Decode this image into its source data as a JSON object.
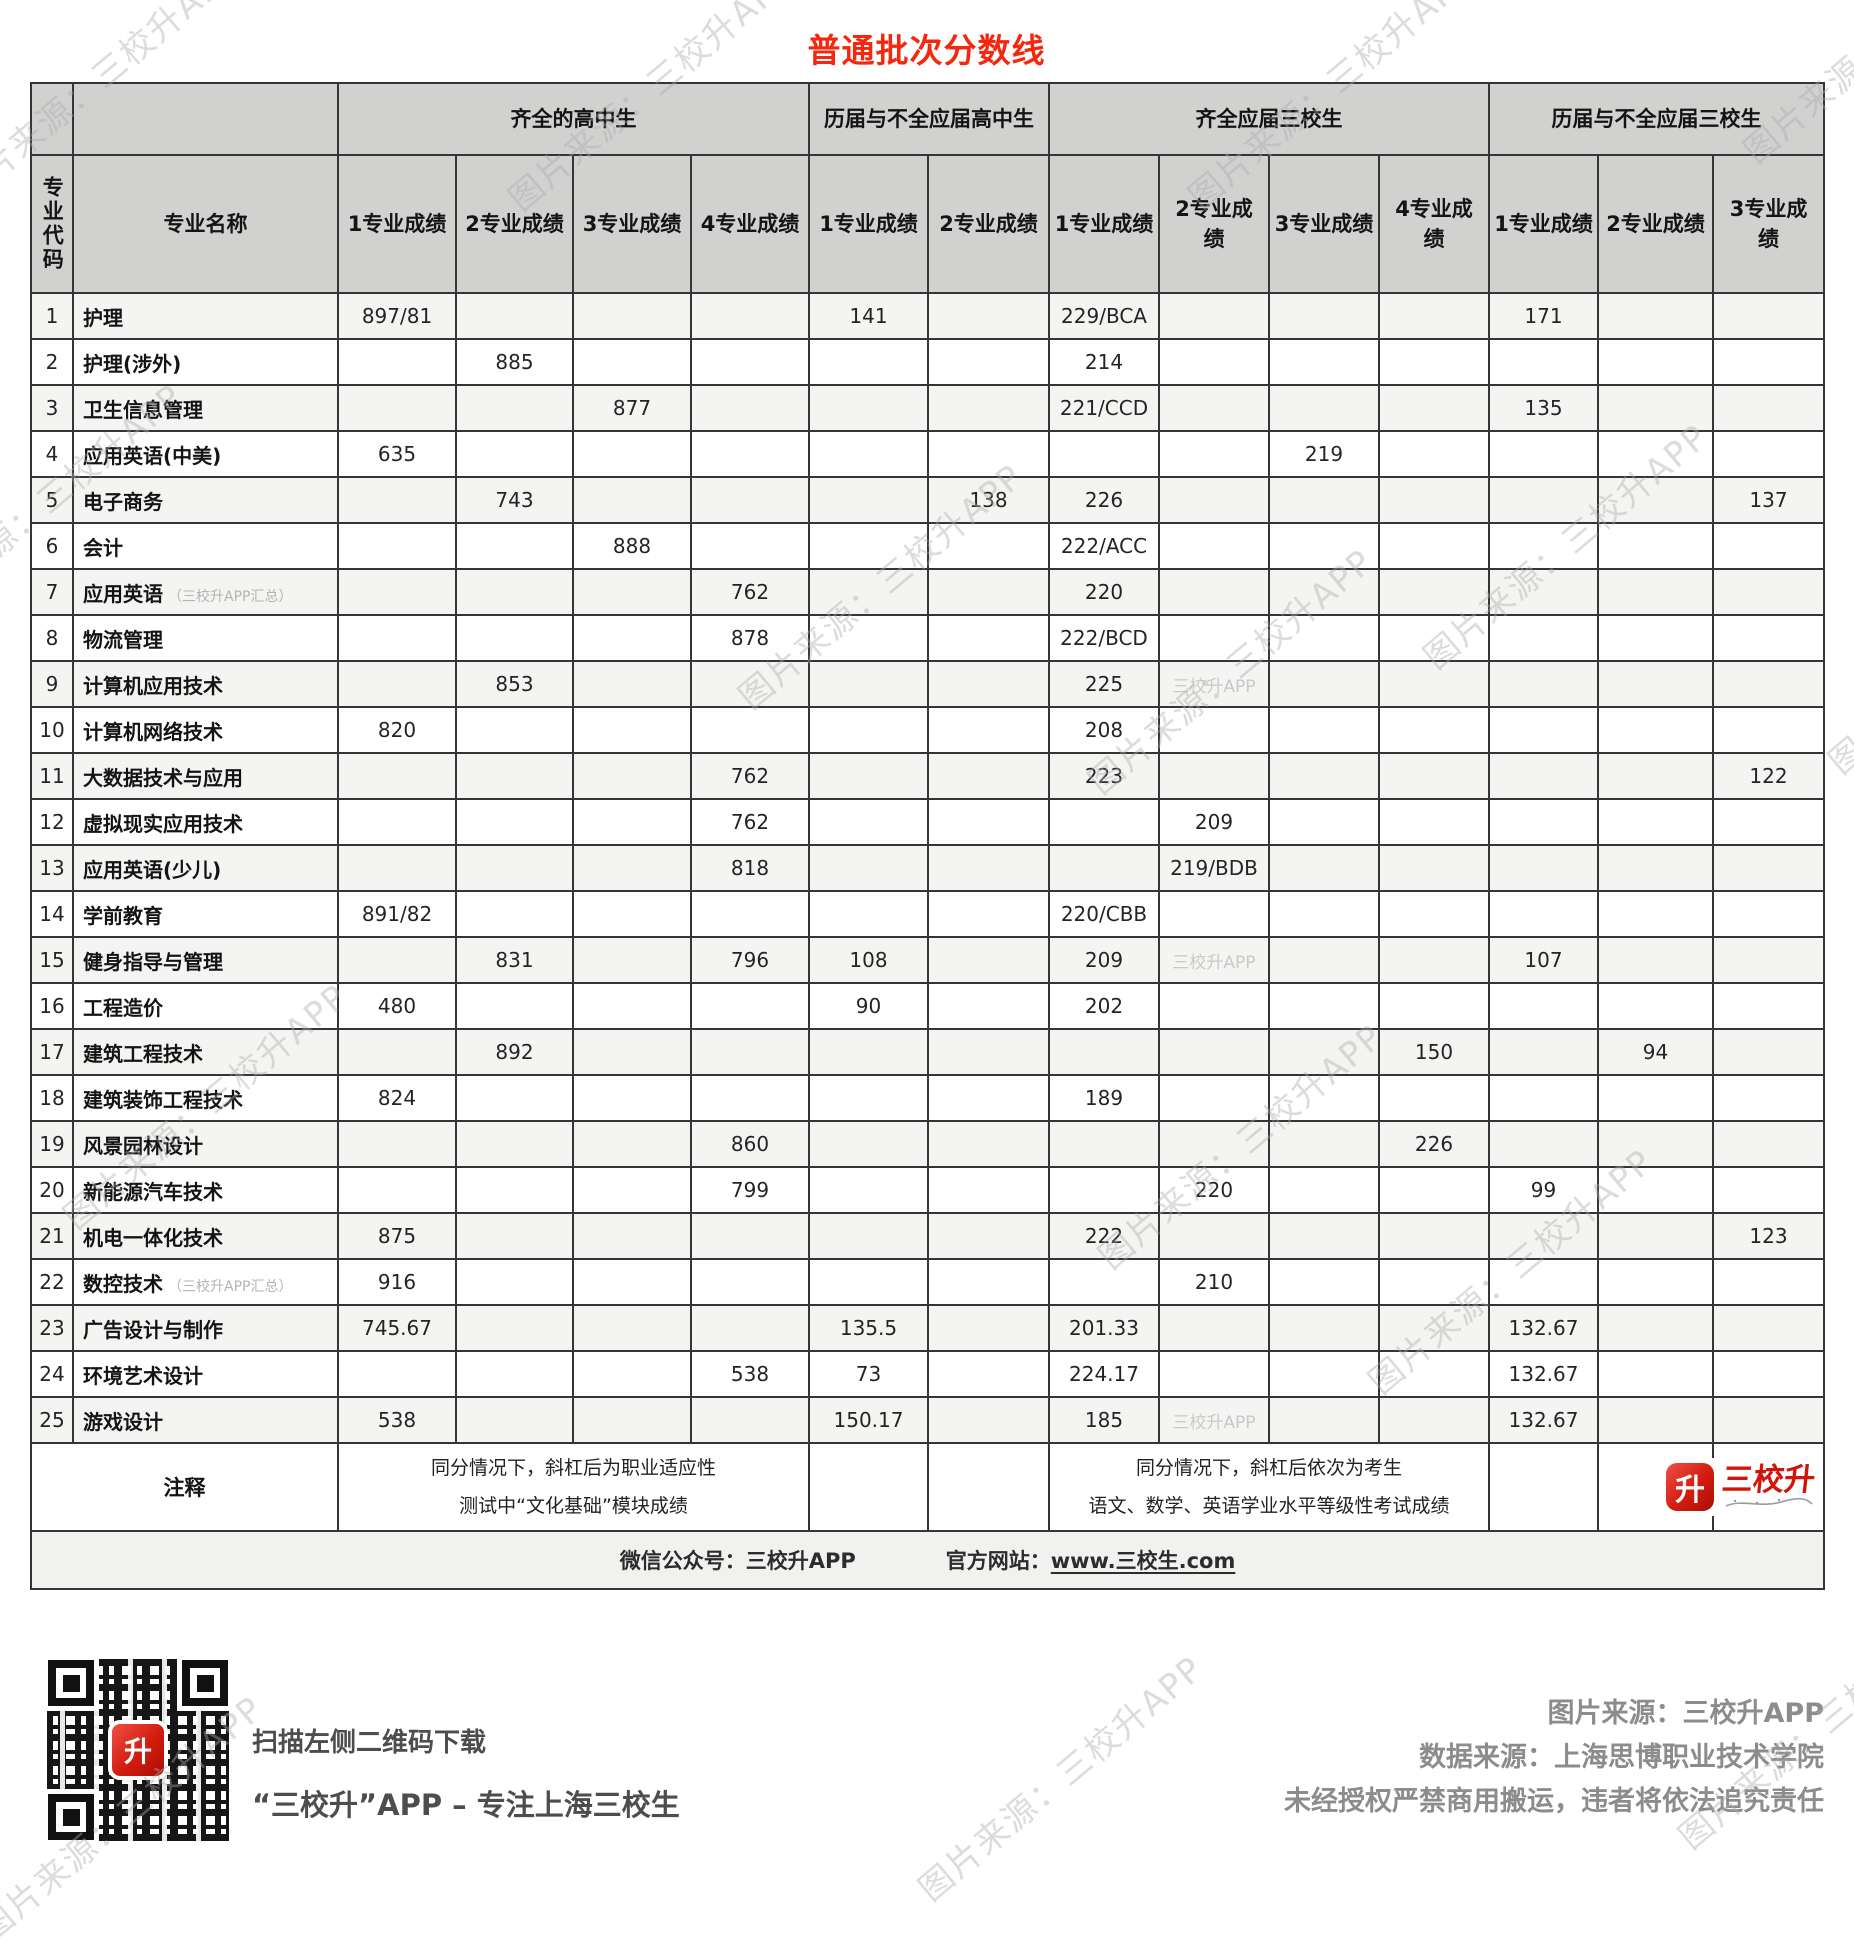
{
  "title": "普通批次分数线",
  "watermark": {
    "text": "图片来源：三校升APP",
    "cell_text": "三校升APP"
  },
  "logo": {
    "icon_char": "升",
    "text": "三校升"
  },
  "table": {
    "corner_col1": "专业代码",
    "corner_col2": "专业名称",
    "groups": [
      {
        "label": "齐全的高中生",
        "span": 4
      },
      {
        "label": "历届与不全应届高中生",
        "span": 2
      },
      {
        "label": "齐全应届三校生",
        "span": 4
      },
      {
        "label": "历届与不全应届三校生",
        "span": 3
      }
    ],
    "subheaders": [
      "1专业成绩",
      "2专业成绩",
      "3专业成绩",
      "4专业成绩",
      "1专业成绩",
      "2专业成绩",
      "1专业成绩",
      "2专业成\n绩",
      "3专业成绩",
      "4专业成\n绩",
      "1专业成绩",
      "2专业成绩",
      "3专业成\n绩"
    ],
    "rows": [
      {
        "code": "1",
        "name": "护理",
        "scores": [
          "897/81",
          "",
          "",
          "",
          "141",
          "",
          "229/BCA",
          "",
          "",
          "",
          "171",
          "",
          ""
        ]
      },
      {
        "code": "2",
        "name": "护理(涉外)",
        "scores": [
          "",
          "885",
          "",
          "",
          "",
          "",
          "214",
          "",
          "",
          "",
          "",
          "",
          ""
        ]
      },
      {
        "code": "3",
        "name": "卫生信息管理",
        "scores": [
          "",
          "",
          "877",
          "",
          "",
          "",
          "221/CCD",
          "",
          "",
          "",
          "135",
          "",
          ""
        ]
      },
      {
        "code": "4",
        "name": "应用英语(中美)",
        "scores": [
          "635",
          "",
          "",
          "",
          "",
          "",
          "",
          "",
          "219",
          "",
          "",
          "",
          ""
        ]
      },
      {
        "code": "5",
        "name": "电子商务",
        "scores": [
          "",
          "743",
          "",
          "",
          "",
          "138",
          "226",
          "",
          "",
          "",
          "",
          "",
          "137"
        ]
      },
      {
        "code": "6",
        "name": "会计",
        "scores": [
          "",
          "",
          "888",
          "",
          "",
          "",
          "222/ACC",
          "",
          "",
          "",
          "",
          "",
          ""
        ]
      },
      {
        "code": "7",
        "name": "应用英语",
        "note": "（三校升APP汇总）",
        "scores": [
          "",
          "",
          "",
          "762",
          "",
          "",
          "220",
          "",
          "",
          "",
          "",
          "",
          ""
        ]
      },
      {
        "code": "8",
        "name": "物流管理",
        "scores": [
          "",
          "",
          "",
          "878",
          "",
          "",
          "222/BCD",
          "",
          "",
          "",
          "",
          "",
          ""
        ]
      },
      {
        "code": "9",
        "name": "计算机应用技术",
        "wm": [
          7
        ],
        "scores": [
          "",
          "853",
          "",
          "",
          "",
          "",
          "225",
          "",
          "",
          "",
          "",
          "",
          ""
        ]
      },
      {
        "code": "10",
        "name": "计算机网络技术",
        "scores": [
          "820",
          "",
          "",
          "",
          "",
          "",
          "208",
          "",
          "",
          "",
          "",
          "",
          ""
        ]
      },
      {
        "code": "11",
        "name": "大数据技术与应用",
        "scores": [
          "",
          "",
          "",
          "762",
          "",
          "",
          "223",
          "",
          "",
          "",
          "",
          "",
          "122"
        ]
      },
      {
        "code": "12",
        "name": "虚拟现实应用技术",
        "scores": [
          "",
          "",
          "",
          "762",
          "",
          "",
          "",
          "209",
          "",
          "",
          "",
          "",
          ""
        ]
      },
      {
        "code": "13",
        "name": "应用英语(少儿)",
        "scores": [
          "",
          "",
          "",
          "818",
          "",
          "",
          "",
          "219/BDB",
          "",
          "",
          "",
          "",
          ""
        ]
      },
      {
        "code": "14",
        "name": "学前教育",
        "scores": [
          "891/82",
          "",
          "",
          "",
          "",
          "",
          "220/CBB",
          "",
          "",
          "",
          "",
          "",
          ""
        ]
      },
      {
        "code": "15",
        "name": "健身指导与管理",
        "wm": [
          7
        ],
        "scores": [
          "",
          "831",
          "",
          "796",
          "108",
          "",
          "209",
          "",
          "",
          "",
          "107",
          "",
          ""
        ]
      },
      {
        "code": "16",
        "name": "工程造价",
        "scores": [
          "480",
          "",
          "",
          "",
          "90",
          "",
          "202",
          "",
          "",
          "",
          "",
          "",
          ""
        ]
      },
      {
        "code": "17",
        "name": "建筑工程技术",
        "scores": [
          "",
          "892",
          "",
          "",
          "",
          "",
          "",
          "",
          "",
          "150",
          "",
          "94",
          ""
        ]
      },
      {
        "code": "18",
        "name": "建筑装饰工程技术",
        "scores": [
          "824",
          "",
          "",
          "",
          "",
          "",
          "189",
          "",
          "",
          "",
          "",
          "",
          ""
        ]
      },
      {
        "code": "19",
        "name": "风景园林设计",
        "scores": [
          "",
          "",
          "",
          "860",
          "",
          "",
          "",
          "",
          "",
          "226",
          "",
          "",
          ""
        ]
      },
      {
        "code": "20",
        "name": "新能源汽车技术",
        "scores": [
          "",
          "",
          "",
          "799",
          "",
          "",
          "",
          "220",
          "",
          "",
          "99",
          "",
          ""
        ]
      },
      {
        "code": "21",
        "name": "机电一体化技术",
        "scores": [
          "875",
          "",
          "",
          "",
          "",
          "",
          "222",
          "",
          "",
          "",
          "",
          "",
          "123"
        ]
      },
      {
        "code": "22",
        "name": "数控技术",
        "note": "（三校升APP汇总）",
        "scores": [
          "916",
          "",
          "",
          "",
          "",
          "",
          "",
          "210",
          "",
          "",
          "",
          "",
          ""
        ]
      },
      {
        "code": "23",
        "name": "广告设计与制作",
        "scores": [
          "745.67",
          "",
          "",
          "",
          "135.5",
          "",
          "201.33",
          "",
          "",
          "",
          "132.67",
          "",
          ""
        ]
      },
      {
        "code": "24",
        "name": "环境艺术设计",
        "scores": [
          "",
          "",
          "",
          "538",
          "73",
          "",
          "224.17",
          "",
          "",
          "",
          "132.67",
          "",
          ""
        ]
      },
      {
        "code": "25",
        "name": "游戏设计",
        "wm": [
          7
        ],
        "scores": [
          "538",
          "",
          "",
          "",
          "150.17",
          "",
          "185",
          "",
          "",
          "",
          "132.67",
          "",
          ""
        ]
      }
    ],
    "note_row": {
      "label": "注释",
      "note_left": "同分情况下，斜杠后为职业适应性\n测试中“文化基础”模块成绩",
      "note_right": "同分情况下，斜杠后依次为考生\n语文、数学、英语学业水平等级性考试成绩"
    },
    "footer": {
      "wechat": "微信公众号：三校升APP",
      "site_label": "官方网站：",
      "site_link": "www.三校生.com"
    }
  },
  "bottom": {
    "qr_caption1": "扫描左侧二维码下载",
    "qr_caption2": "“三校升”APP – 专注上海三校生",
    "source1": "图片来源：三校升APP",
    "source2": "数据来源：上海思博职业技术学院",
    "source3": "未经授权严禁商用搬运，违者将依法追究责任"
  },
  "colors": {
    "title_red": "#f5270e",
    "logo_red": "#d3140a",
    "header_gray": "#d1d1d0"
  }
}
